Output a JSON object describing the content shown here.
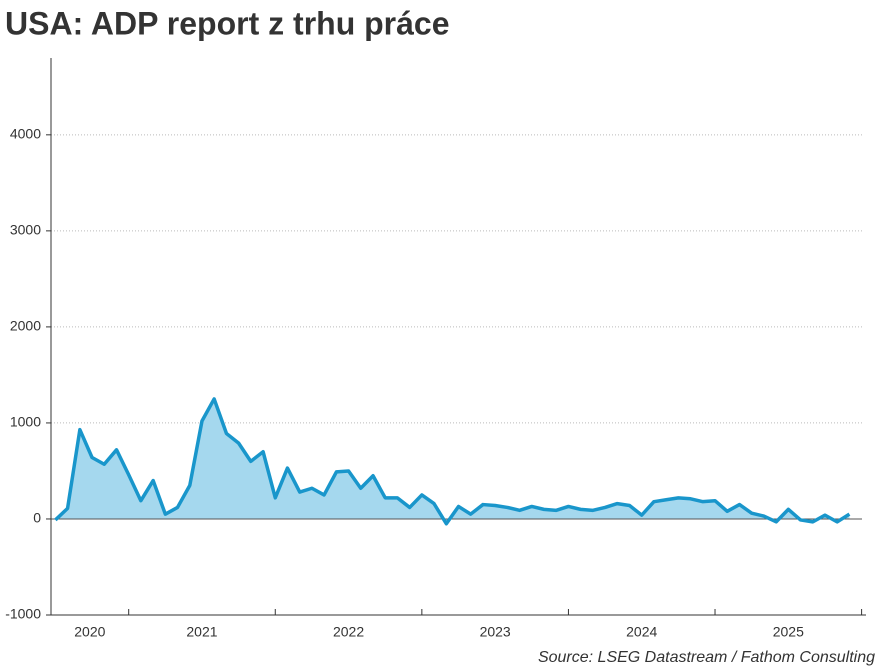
{
  "chart_data": {
    "type": "area",
    "title": "USA: ADP report z trhu práce",
    "source": "Source: LSEG Datastream / Fathom Consulting",
    "x": [
      2020.5,
      2020.583,
      2020.667,
      2020.75,
      2020.833,
      2020.917,
      2021,
      2021.083,
      2021.167,
      2021.25,
      2021.333,
      2021.417,
      2021.5,
      2021.583,
      2021.667,
      2021.75,
      2021.833,
      2021.917,
      2022,
      2022.083,
      2022.167,
      2022.25,
      2022.333,
      2022.417,
      2022.5,
      2022.583,
      2022.667,
      2022.75,
      2022.833,
      2022.917,
      2023,
      2023.083,
      2023.167,
      2023.25,
      2023.333,
      2023.417,
      2023.5,
      2023.583,
      2023.667,
      2023.75,
      2023.833,
      2023.917,
      2024,
      2024.083,
      2024.167,
      2024.25,
      2024.333,
      2024.417,
      2024.5,
      2024.583,
      2024.667,
      2024.75,
      2024.833,
      2024.917,
      2025,
      2025.083,
      2025.167,
      2025.25,
      2025.333,
      2025.417,
      2025.5,
      2025.583,
      2025.667,
      2025.75,
      2025.833,
      2025.917
    ],
    "series": [
      {
        "color": "#1996cb",
        "fill": "#a5d8ee",
        "values": [
          -10,
          110,
          930,
          640,
          570,
          720,
          460,
          190,
          400,
          50,
          120,
          350,
          1020,
          1250,
          890,
          790,
          600,
          700,
          220,
          530,
          280,
          320,
          250,
          490,
          500,
          320,
          450,
          220,
          220,
          120,
          250,
          160,
          -50,
          130,
          50,
          150,
          140,
          120,
          90,
          130,
          100,
          90,
          130,
          100,
          90,
          120,
          160,
          140,
          40,
          180,
          200,
          220,
          210,
          180,
          190,
          80,
          150,
          60,
          30,
          -30,
          100,
          -10,
          -30,
          40,
          -30,
          50
        ]
      }
    ],
    "xlim": [
      2020.47,
      2026.03
    ],
    "xticks": [
      2021,
      2022,
      2023,
      2024,
      2025,
      2026
    ],
    "year_labels": [
      "2020",
      "2021",
      "2022",
      "2023",
      "2024",
      "2025"
    ],
    "ylim": [
      -1000,
      4800
    ],
    "yticks": [
      -1000,
      0,
      1000,
      2000,
      3000,
      4000
    ],
    "grid": true
  }
}
